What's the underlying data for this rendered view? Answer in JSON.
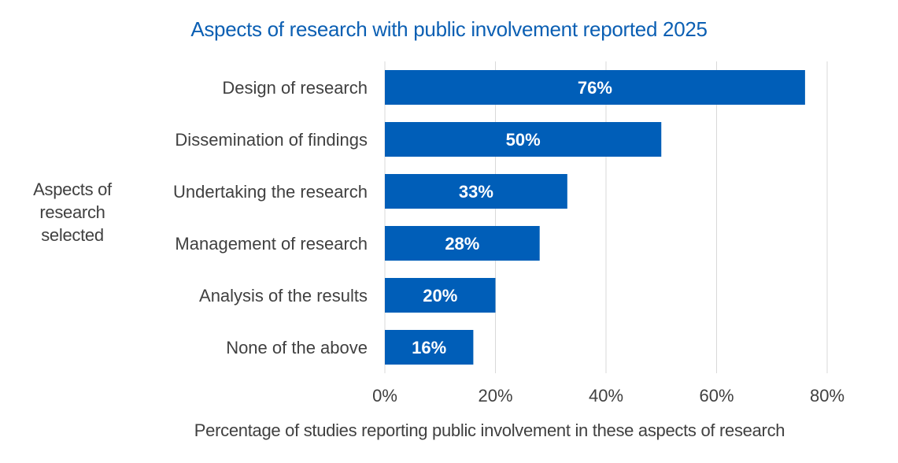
{
  "chart_data": {
    "type": "bar",
    "orientation": "horizontal",
    "title": "Aspects of research with public involvement reported 2025",
    "ylabel": "Aspects of research selected",
    "xlabel": "Percentage of studies reporting public involvement in these aspects of research",
    "categories": [
      "Design of research",
      "Dissemination of findings",
      "Undertaking the research",
      "Management of research",
      "Analysis of the results",
      "None of the above"
    ],
    "values": [
      76,
      50,
      33,
      28,
      20,
      16
    ],
    "data_labels": [
      "76%",
      "50%",
      "33%",
      "28%",
      "20%",
      "16%"
    ],
    "xlim": [
      0,
      80
    ],
    "x_ticks": [
      0,
      20,
      40,
      60,
      80
    ],
    "x_tick_labels": [
      "0%",
      "20%",
      "40%",
      "60%",
      "80%"
    ],
    "grid": "vertical",
    "legend": "none",
    "colors": {
      "bar": "#005eb8",
      "title": "#0b5fb3",
      "text": "#404040",
      "grid": "#d9d9d9",
      "data_label": "#ffffff"
    }
  }
}
